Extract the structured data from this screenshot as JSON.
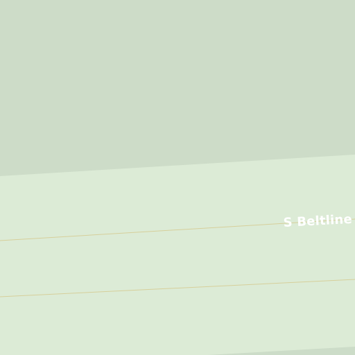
{
  "map": {
    "colors": {
      "land": "#dcebd6",
      "park_area": "#cddcc8",
      "lower_strip": "#ccdcc8",
      "road_line": "#d6cf9a",
      "label_text": "#ffffff"
    },
    "labels": {
      "road_name": "S Beltline"
    }
  }
}
